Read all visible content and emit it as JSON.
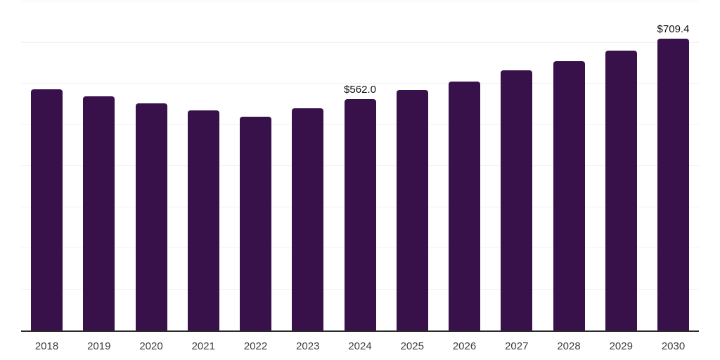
{
  "page": {
    "background_color": "#ffffff"
  },
  "chart_style": {
    "bar_color": "#38114b",
    "gridline_color": "#f2f2f2",
    "axis_line_color": "#2b2b2b",
    "tick_label_color": "#3d3d3d",
    "data_label_color": "#111111"
  },
  "chart_data": {
    "type": "bar",
    "title": "",
    "xlabel": "",
    "ylabel": "",
    "categories": [
      "2018",
      "2019",
      "2020",
      "2021",
      "2022",
      "2023",
      "2024",
      "2025",
      "2026",
      "2027",
      "2028",
      "2029",
      "2030"
    ],
    "values": [
      586,
      569,
      552,
      535,
      519,
      540,
      562.0,
      584,
      606,
      632,
      655,
      681,
      709.4
    ],
    "data_labels": [
      "",
      "",
      "",
      "",
      "",
      "",
      "$562.0",
      "",
      "",
      "",
      "",
      "",
      "$709.4"
    ],
    "ylim": [
      0,
      800
    ],
    "gridline_step": 100,
    "grid": true,
    "legend": false,
    "y_axis_labels_visible": false,
    "bar_corner_radius_px": 4
  }
}
